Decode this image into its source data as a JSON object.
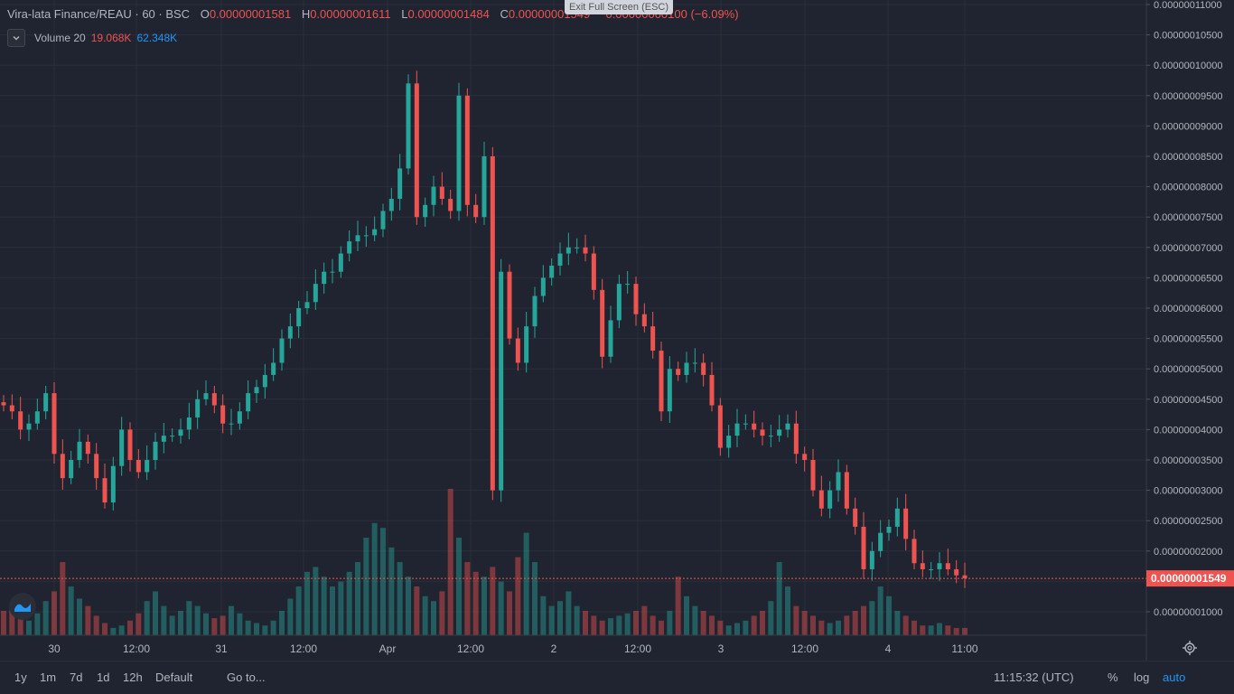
{
  "legend": {
    "symbol": "Vira-lata Finance/REAU · 60 · BSC",
    "open_label": "O",
    "open": "0.00000001581",
    "high_label": "H",
    "high": "0.00000001611",
    "low_label": "L",
    "low": "0.00000001484",
    "close_label": "C",
    "close": "0.00000001549",
    "change": "−0.00000000100 (−6.09%)"
  },
  "volume_legend": {
    "label": "Volume 20",
    "v1": "19.068K",
    "v2": "62.348K"
  },
  "exit_fullscreen": "Exit Full Screen (ESC)",
  "toolbar": {
    "ranges": [
      "1y",
      "1m",
      "7d",
      "1d",
      "12h",
      "Default"
    ],
    "goto": "Go to...",
    "time": "11:15:32 (UTC)",
    "percent": "%",
    "log": "log",
    "auto": "auto"
  },
  "colors": {
    "up": "#26a69a",
    "down": "#ef5350",
    "background": "#1f2430",
    "accent": "#2196f3"
  },
  "chart_data": {
    "type": "candlestick",
    "y_ticks": [
      "0.00000001000",
      "0.00000001500",
      "0.00000002000",
      "0.00000002500",
      "0.00000003000",
      "0.00000003500",
      "0.00000004000",
      "0.00000004500",
      "0.00000005000",
      "0.00000005500",
      "0.00000006000",
      "0.00000006500",
      "0.00000007000",
      "0.00000007500",
      "0.00000008000",
      "0.00000008500",
      "0.00000009000",
      "0.00000009500",
      "0.00000010000",
      "0.00000010500",
      "0.00000011000"
    ],
    "x_ticks": [
      "30",
      "12:00",
      "31",
      "12:00",
      "Apr",
      "12:00",
      "2",
      "12:00",
      "3",
      "12:00",
      "4",
      "11:00"
    ],
    "last_price": "0.00000001549",
    "close_path": [
      4.4,
      4.3,
      4.0,
      4.1,
      4.3,
      4.6,
      3.6,
      3.2,
      3.5,
      3.8,
      3.6,
      3.2,
      2.8,
      3.4,
      4.0,
      3.5,
      3.3,
      3.5,
      3.8,
      3.9,
      3.9,
      4.0,
      4.2,
      4.5,
      4.6,
      4.4,
      4.1,
      4.1,
      4.3,
      4.6,
      4.7,
      4.9,
      5.1,
      5.5,
      5.7,
      6.0,
      6.1,
      6.4,
      6.6,
      6.6,
      6.9,
      7.1,
      7.2,
      7.2,
      7.3,
      7.6,
      7.8,
      8.3,
      9.7,
      7.5,
      7.7,
      8.0,
      7.8,
      7.6,
      9.5,
      7.7,
      7.5,
      8.5,
      3.0,
      6.6,
      5.5,
      5.1,
      5.7,
      6.2,
      6.5,
      6.7,
      6.9,
      7.0,
      7.0,
      6.9,
      6.3,
      5.2,
      5.8,
      6.4,
      6.4,
      5.9,
      5.7,
      5.3,
      4.3,
      5.0,
      4.9,
      5.1,
      5.1,
      4.9,
      4.4,
      3.7,
      3.9,
      4.1,
      4.1,
      4.0,
      3.9,
      3.9,
      4.0,
      4.1,
      3.6,
      3.5,
      3.0,
      2.7,
      3.0,
      3.3,
      2.7,
      2.4,
      1.7,
      2.0,
      2.3,
      2.4,
      2.7,
      2.2,
      1.8,
      1.7,
      1.7,
      1.8,
      1.7,
      1.6,
      1.55
    ],
    "volume_path": [
      10,
      12,
      8,
      6,
      9,
      14,
      18,
      30,
      20,
      15,
      12,
      8,
      5,
      3,
      4,
      6,
      9,
      14,
      18,
      12,
      8,
      10,
      14,
      12,
      9,
      7,
      8,
      12,
      9,
      6,
      5,
      4,
      6,
      10,
      15,
      20,
      26,
      28,
      24,
      20,
      22,
      26,
      30,
      40,
      46,
      44,
      36,
      30,
      24,
      20,
      16,
      14,
      18,
      60,
      40,
      30,
      26,
      24,
      28,
      22,
      18,
      32,
      42,
      30,
      16,
      12,
      14,
      18,
      12,
      10,
      8,
      6,
      7,
      8,
      9,
      10,
      12,
      8,
      6,
      10,
      24,
      16,
      12,
      10,
      8,
      6,
      4,
      5,
      6,
      8,
      10,
      14,
      30,
      20,
      12,
      10,
      8,
      6,
      5,
      6,
      8,
      10,
      12,
      14,
      20,
      16,
      10,
      8,
      6,
      4,
      4,
      5,
      4,
      3,
      3
    ]
  }
}
